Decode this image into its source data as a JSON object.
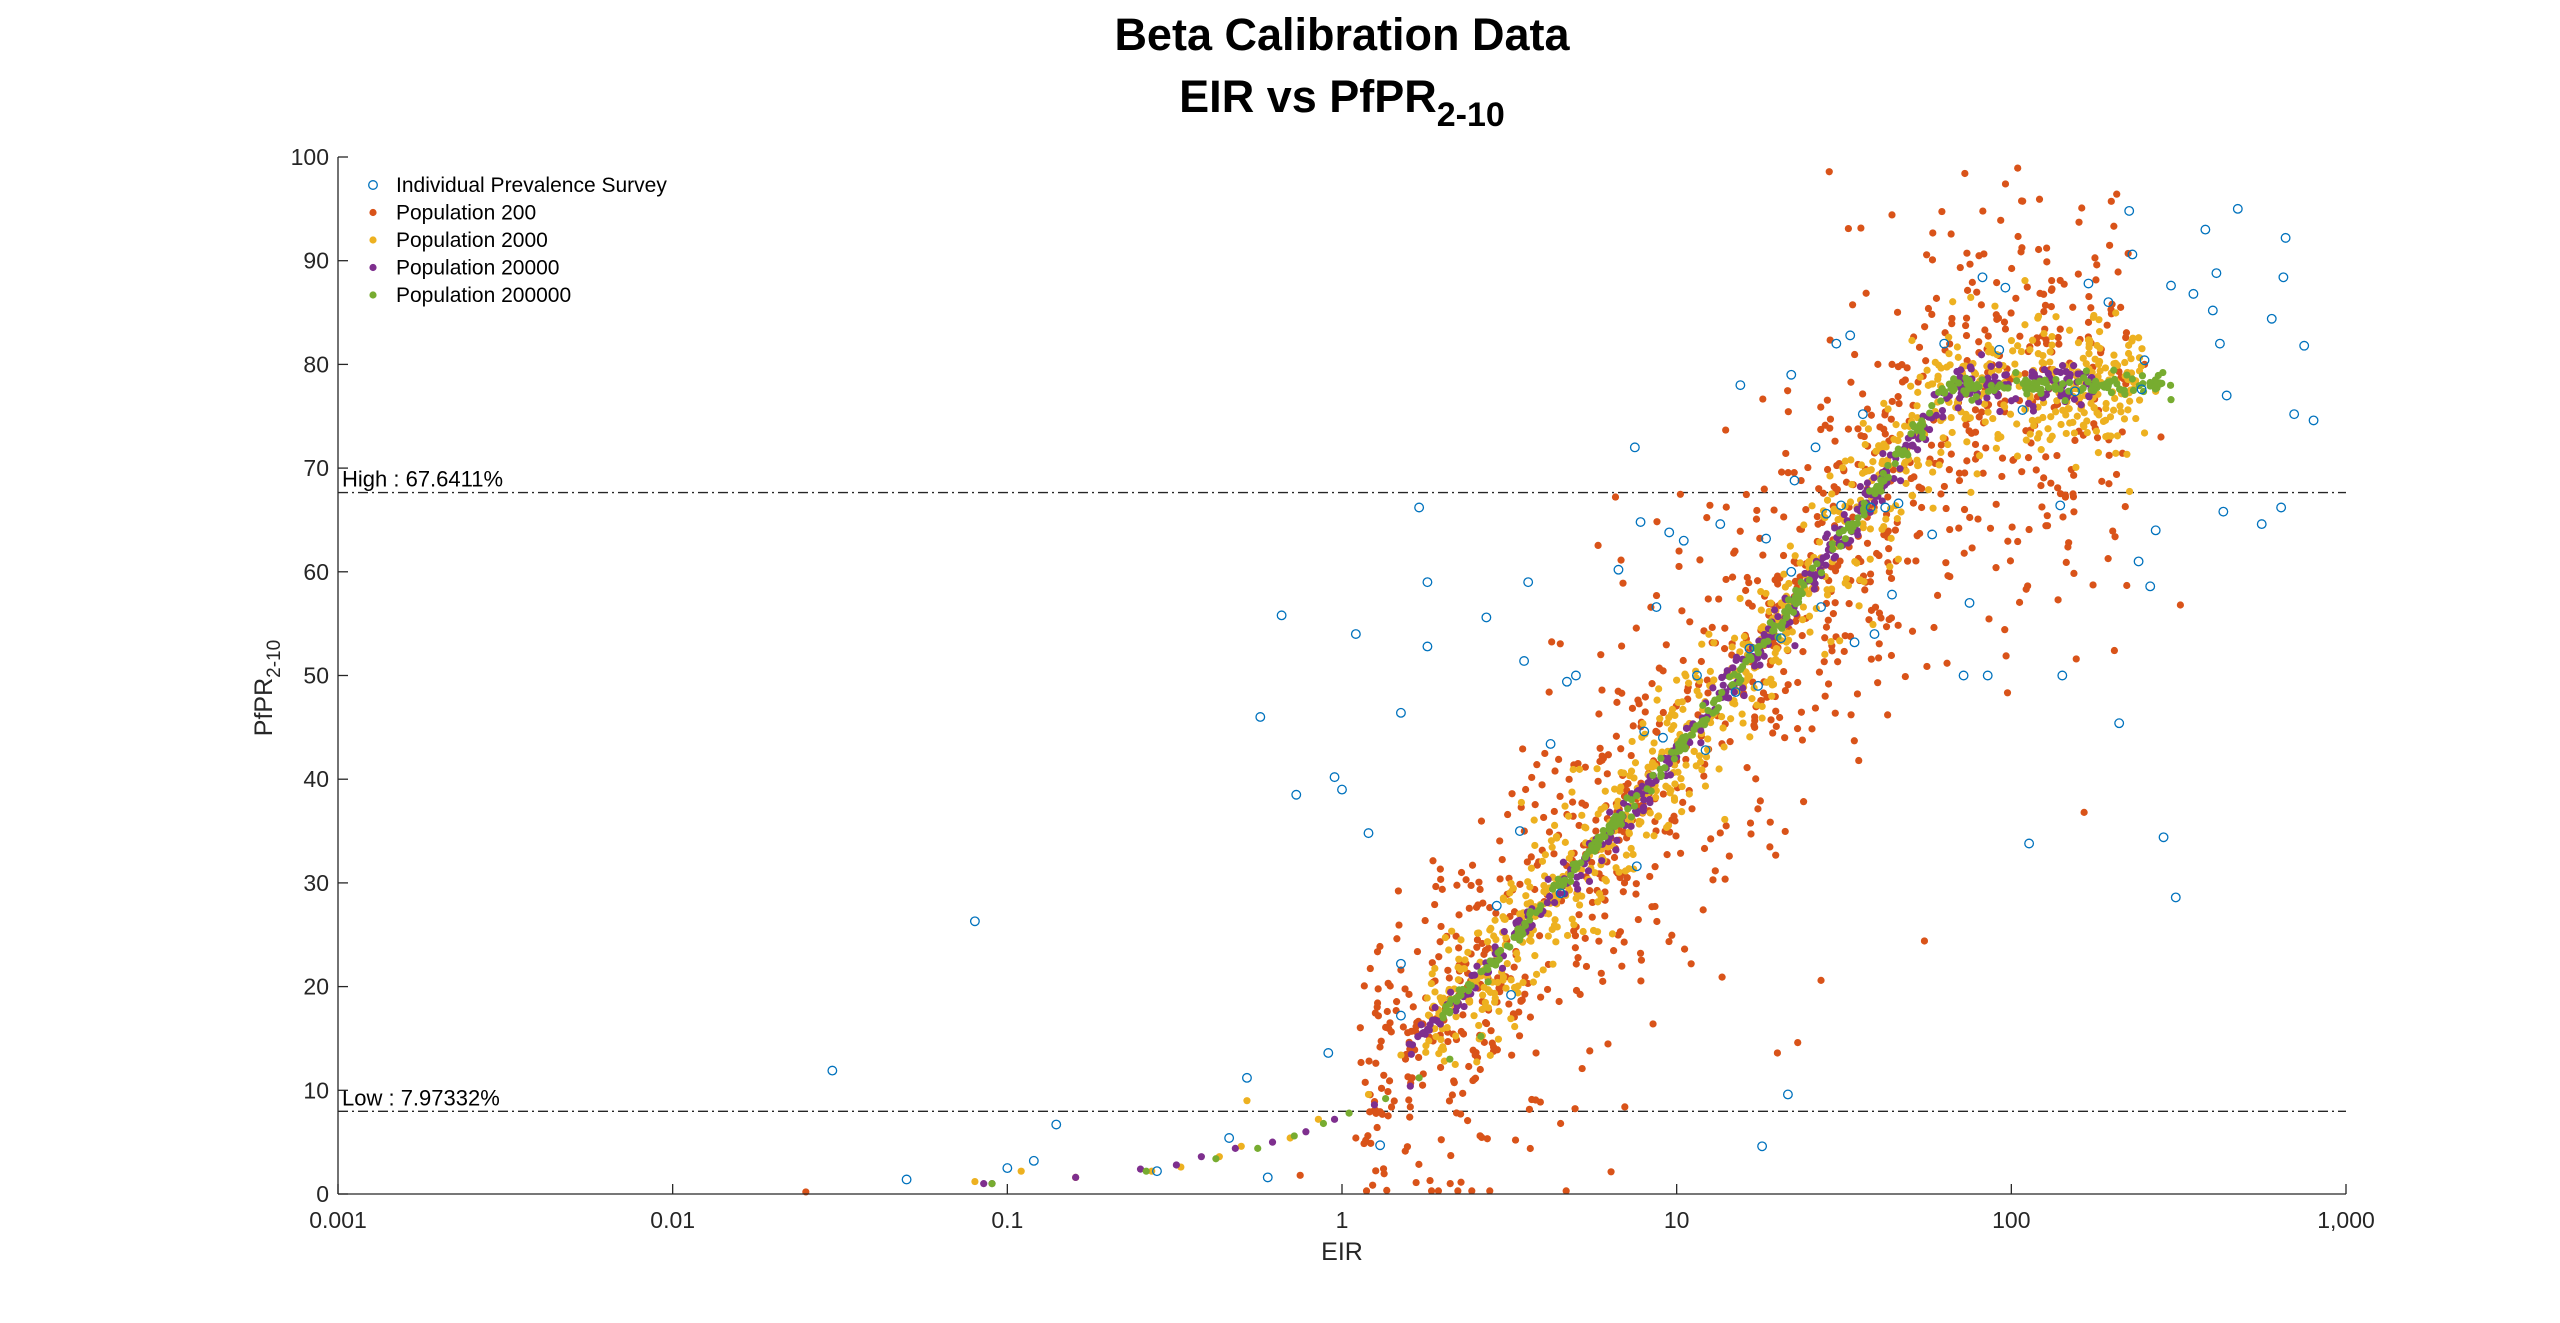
{
  "chart_data": {
    "type": "scatter",
    "title_line1": "Beta Calibration Data",
    "title_line2_main": "EIR vs PfPR",
    "title_line2_sub": "2-10",
    "xlabel": "EIR",
    "ylabel_main": "PfPR",
    "ylabel_sub": "2-10",
    "x_scale": "log",
    "xlim": [
      0.001,
      1000
    ],
    "ylim": [
      0,
      100
    ],
    "x_ticks": [
      0.001,
      0.01,
      0.1,
      1,
      10,
      100,
      1000
    ],
    "x_tick_labels": [
      "0.001",
      "0.01",
      "0.1",
      "1",
      "10",
      "100",
      "1,000"
    ],
    "y_ticks": [
      0,
      10,
      20,
      30,
      40,
      50,
      60,
      70,
      80,
      90,
      100
    ],
    "y_tick_labels": [
      "0",
      "10",
      "20",
      "30",
      "40",
      "50",
      "60",
      "70",
      "80",
      "90",
      "100"
    ],
    "grid": false,
    "legend_position": "top-left",
    "reference_lines": [
      {
        "y": 67.6411,
        "label": "High : 67.6411%"
      },
      {
        "y": 7.97332,
        "label": "Low : 7.97332%"
      }
    ],
    "series": [
      {
        "name": "Individual Prevalence Survey",
        "marker": "open-circle",
        "color": "#0072BD",
        "points": [
          [
            0.03,
            11.9
          ],
          [
            0.05,
            1.4
          ],
          [
            0.08,
            26.3
          ],
          [
            0.1,
            2.5
          ],
          [
            0.12,
            3.2
          ],
          [
            0.14,
            6.7
          ],
          [
            0.28,
            2.2
          ],
          [
            0.46,
            5.4
          ],
          [
            0.52,
            11.2
          ],
          [
            0.57,
            46
          ],
          [
            0.6,
            1.6
          ],
          [
            0.66,
            55.8
          ],
          [
            0.73,
            38.5
          ],
          [
            0.91,
            13.6
          ],
          [
            0.95,
            40.2
          ],
          [
            1.0,
            39
          ],
          [
            1.1,
            54
          ],
          [
            1.2,
            34.8
          ],
          [
            1.3,
            4.7
          ],
          [
            1.5,
            46.4
          ],
          [
            1.5,
            22.2
          ],
          [
            1.5,
            17.2
          ],
          [
            1.7,
            66.2
          ],
          [
            1.8,
            52.8
          ],
          [
            1.8,
            59
          ],
          [
            2.7,
            55.6
          ],
          [
            2.9,
            27.8
          ],
          [
            3.2,
            19.2
          ],
          [
            3.4,
            35
          ],
          [
            3.5,
            51.4
          ],
          [
            3.6,
            59
          ],
          [
            4.2,
            43.4
          ],
          [
            4.5,
            29
          ],
          [
            4.7,
            49.4
          ],
          [
            5.0,
            50
          ],
          [
            6.7,
            60.2
          ],
          [
            7.5,
            72
          ],
          [
            7.6,
            31.6
          ],
          [
            7.8,
            64.8
          ],
          [
            8.0,
            44.6
          ],
          [
            8.7,
            56.6
          ],
          [
            9.1,
            44
          ],
          [
            9.5,
            63.8
          ],
          [
            10.5,
            63
          ],
          [
            11.5,
            50
          ],
          [
            12.2,
            42.8
          ],
          [
            13.5,
            64.6
          ],
          [
            15,
            48.4
          ],
          [
            15.5,
            78
          ],
          [
            16.5,
            52.6
          ],
          [
            17.5,
            49
          ],
          [
            18,
            4.6
          ],
          [
            18.5,
            63.2
          ],
          [
            20.5,
            53.6
          ],
          [
            21.5,
            9.6
          ],
          [
            22,
            60
          ],
          [
            22,
            79
          ],
          [
            22.5,
            68.8
          ],
          [
            26,
            72
          ],
          [
            27,
            56.6
          ],
          [
            28,
            65.6
          ],
          [
            30,
            82
          ],
          [
            31,
            66.4
          ],
          [
            33,
            82.8
          ],
          [
            34,
            53.2
          ],
          [
            36,
            75.2
          ],
          [
            38,
            66.2
          ],
          [
            39,
            54
          ],
          [
            42,
            66.2
          ],
          [
            44,
            57.8
          ],
          [
            46,
            66.6
          ],
          [
            58,
            63.6
          ],
          [
            63,
            82
          ],
          [
            72,
            50
          ],
          [
            75,
            57
          ],
          [
            82,
            88.4
          ],
          [
            85,
            50
          ],
          [
            92,
            81.4
          ],
          [
            96,
            87.4
          ],
          [
            108,
            75.6
          ],
          [
            113,
            33.8
          ],
          [
            140,
            66.4
          ],
          [
            142,
            50
          ],
          [
            155,
            77.4
          ],
          [
            170,
            87.8
          ],
          [
            195,
            86
          ],
          [
            210,
            45.4
          ],
          [
            225,
            94.8
          ],
          [
            230,
            90.6
          ],
          [
            240,
            61
          ],
          [
            245,
            77.6
          ],
          [
            250,
            80.4
          ],
          [
            260,
            58.6
          ],
          [
            270,
            64
          ],
          [
            285,
            34.4
          ],
          [
            300,
            87.6
          ],
          [
            310,
            28.6
          ],
          [
            350,
            86.8
          ],
          [
            380,
            93
          ],
          [
            400,
            85.2
          ],
          [
            410,
            88.8
          ],
          [
            420,
            82
          ],
          [
            430,
            65.8
          ],
          [
            440,
            77
          ],
          [
            475,
            95
          ],
          [
            560,
            64.6
          ],
          [
            600,
            84.4
          ],
          [
            640,
            66.2
          ],
          [
            650,
            88.4
          ],
          [
            660,
            92.2
          ],
          [
            700,
            75.2
          ],
          [
            750,
            81.8
          ],
          [
            800,
            74.6
          ]
        ]
      },
      {
        "name": "Population 200",
        "marker": "filled-dot",
        "color": "#D95319",
        "points": [
          [
            0.025,
            0.2
          ],
          [
            0.75,
            1.8
          ],
          [
            1.1,
            5.4
          ],
          [
            1.6,
            8.4
          ],
          [
            2.5,
            13.4
          ],
          [
            2.7,
            21.4
          ],
          [
            3.3,
            5.2
          ],
          [
            3.8,
            13.6
          ],
          [
            4.5,
            6.8
          ],
          [
            5.5,
            13.8
          ],
          [
            7.0,
            8.4
          ],
          [
            8.5,
            16.4
          ],
          [
            12,
            27.4
          ],
          [
            20,
            13.6
          ],
          [
            23,
            14.6
          ],
          [
            27,
            20.6
          ],
          [
            35,
            41.8
          ],
          [
            55,
            24.4
          ],
          [
            70,
            68.8
          ],
          [
            90,
            60.4
          ],
          [
            110,
            78.2
          ],
          [
            140,
            83.4
          ],
          [
            165,
            36.8
          ],
          [
            180,
            89.6
          ],
          [
            200,
            85.8
          ],
          [
            250,
            80
          ],
          [
            280,
            73
          ],
          [
            320,
            56.8
          ]
        ],
        "band": {
          "n": 1050,
          "spread": 10.5,
          "log10_x_range": [
            0.05,
            2.35
          ],
          "seed": 11
        }
      },
      {
        "name": "Population 2000",
        "marker": "filled-dot",
        "color": "#EDB120",
        "points": [
          [
            0.08,
            1.2
          ],
          [
            0.11,
            2.2
          ],
          [
            0.16,
            1.6
          ],
          [
            0.27,
            2.2
          ],
          [
            0.33,
            2.6
          ],
          [
            0.43,
            3.6
          ],
          [
            0.5,
            4.6
          ],
          [
            0.52,
            9.0
          ],
          [
            0.7,
            5.4
          ],
          [
            0.85,
            7.2
          ],
          [
            1.2,
            9.6
          ],
          [
            1.5,
            13.4
          ],
          [
            2.0,
            14.2
          ],
          [
            2.2,
            18.2
          ],
          [
            3.0,
            21.4
          ],
          [
            270,
            77.4
          ]
        ],
        "band": {
          "n": 900,
          "spread": 3.8,
          "log10_x_range": [
            0.25,
            2.4
          ],
          "seed": 23
        }
      },
      {
        "name": "Population 20000",
        "marker": "filled-dot",
        "color": "#7E2F8E",
        "points": [
          [
            0.085,
            1.0
          ],
          [
            0.09,
            1.0
          ],
          [
            0.16,
            1.6
          ],
          [
            0.25,
            2.4
          ],
          [
            0.32,
            2.8
          ],
          [
            0.38,
            3.6
          ],
          [
            0.48,
            4.4
          ],
          [
            0.62,
            5.0
          ],
          [
            0.78,
            6.0
          ],
          [
            0.95,
            7.2
          ],
          [
            1.25,
            8.6
          ],
          [
            1.6,
            10.4
          ]
        ],
        "band": {
          "n": 420,
          "spread": 1.1,
          "log10_x_range": [
            0.2,
            2.25
          ],
          "seed": 37
        }
      },
      {
        "name": "Population 200000",
        "marker": "filled-dot",
        "color": "#77AC30",
        "points": [
          [
            0.09,
            1.0
          ],
          [
            0.26,
            2.2
          ],
          [
            0.42,
            3.4
          ],
          [
            0.56,
            4.4
          ],
          [
            0.72,
            5.6
          ],
          [
            0.88,
            6.8
          ],
          [
            1.05,
            7.8
          ],
          [
            1.35,
            9.2
          ],
          [
            1.7,
            11.2
          ],
          [
            2.1,
            13.0
          ],
          [
            2.6,
            15.2
          ],
          [
            300,
            76.6
          ]
        ],
        "band": {
          "n": 380,
          "spread": 0.5,
          "log10_x_range": [
            0.3,
            2.48
          ],
          "seed": 53
        }
      }
    ]
  }
}
